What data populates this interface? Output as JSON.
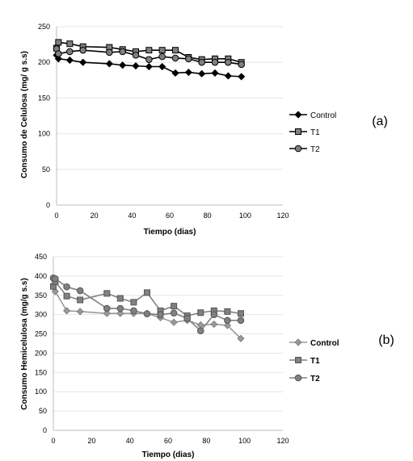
{
  "chart_data": [
    {
      "type": "line",
      "panel_label": "(a)",
      "xlabel": "Tiempo (dias)",
      "ylabel": "Consumo de Celulosa (mg/ g s.s)",
      "xlim": [
        0,
        120
      ],
      "ylim": [
        0,
        250
      ],
      "xticks": [
        "0",
        "20",
        "40",
        "60",
        "80",
        "100",
        "120"
      ],
      "yticks": [
        "0",
        "50",
        "100",
        "150",
        "200",
        "250"
      ],
      "grid": true,
      "legend_position": "right",
      "series": [
        {
          "name": "Control",
          "marker": "diamond",
          "color": "#000000",
          "x": [
            0,
            1,
            7,
            14,
            28,
            35,
            42,
            49,
            56,
            63,
            70,
            77,
            84,
            91,
            98
          ],
          "y": [
            210,
            205,
            203,
            200,
            198,
            196,
            195,
            194,
            194,
            185,
            186,
            184,
            185,
            181,
            180
          ]
        },
        {
          "name": "T1",
          "marker": "square",
          "color": "#000000",
          "x": [
            0,
            1,
            7,
            14,
            28,
            35,
            42,
            49,
            56,
            63,
            70,
            77,
            84,
            91,
            98
          ],
          "y": [
            220,
            228,
            226,
            222,
            221,
            218,
            215,
            217,
            217,
            217,
            207,
            204,
            205,
            205,
            200
          ]
        },
        {
          "name": "T2",
          "marker": "circle",
          "color": "#000000",
          "x": [
            0,
            1,
            7,
            14,
            28,
            35,
            42,
            49,
            56,
            63,
            70,
            77,
            84,
            91,
            98
          ],
          "y": [
            219,
            212,
            215,
            217,
            214,
            215,
            210,
            204,
            208,
            206,
            205,
            200,
            200,
            200,
            197
          ]
        }
      ]
    },
    {
      "type": "line",
      "panel_label": "(b)",
      "xlabel": "Tiempo (dias)",
      "ylabel": "Consumo Hemicelulosa (mg/g s.s)",
      "xlim": [
        0,
        120
      ],
      "ylim": [
        0,
        450
      ],
      "xticks": [
        "0",
        "20",
        "40",
        "60",
        "80",
        "100",
        "120"
      ],
      "yticks": [
        "0",
        "50",
        "100",
        "150",
        "200",
        "250",
        "300",
        "350",
        "400",
        "450"
      ],
      "grid": true,
      "legend_position": "right",
      "series": [
        {
          "name": "Control",
          "marker": "diamond",
          "color": "#999999",
          "x": [
            0,
            1,
            7,
            14,
            28,
            35,
            42,
            49,
            56,
            63,
            70,
            77,
            84,
            91,
            98
          ],
          "y": [
            392,
            360,
            310,
            308,
            303,
            303,
            303,
            303,
            292,
            280,
            285,
            273,
            275,
            272,
            238
          ]
        },
        {
          "name": "T1",
          "marker": "square",
          "color": "#808080",
          "x": [
            0,
            1,
            7,
            14,
            28,
            35,
            42,
            49,
            56,
            63,
            70,
            77,
            84,
            91,
            98
          ],
          "y": [
            373,
            385,
            348,
            338,
            355,
            342,
            332,
            357,
            310,
            322,
            297,
            305,
            310,
            308,
            303
          ]
        },
        {
          "name": "T2",
          "marker": "circle",
          "color": "#808080",
          "x": [
            0,
            1,
            7,
            14,
            28,
            35,
            42,
            49,
            56,
            63,
            70,
            77,
            84,
            91,
            98
          ],
          "y": [
            395,
            393,
            372,
            362,
            316,
            316,
            310,
            302,
            300,
            304,
            290,
            258,
            300,
            285,
            285
          ]
        }
      ]
    }
  ]
}
